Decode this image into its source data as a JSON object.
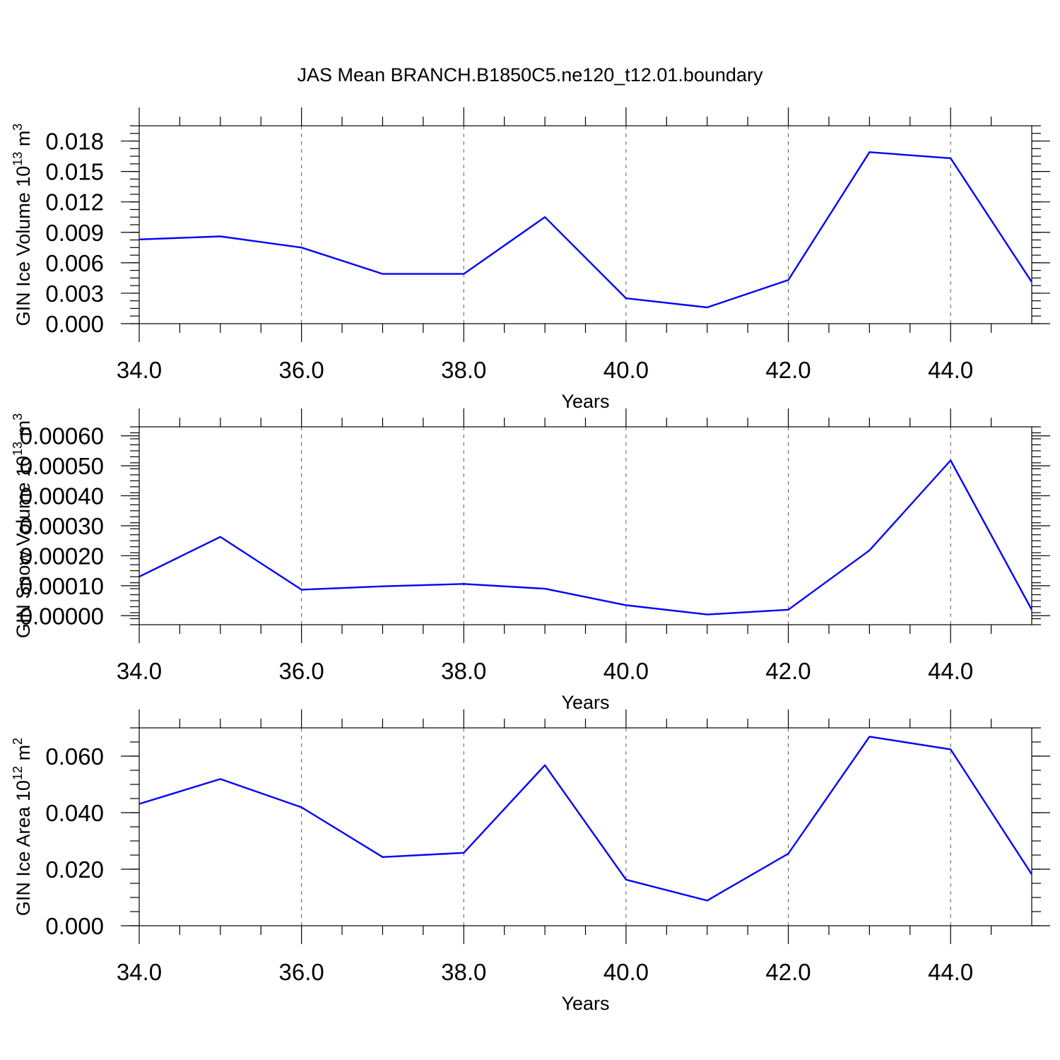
{
  "figure_title": "JAS Mean BRANCH.B1850C5.ne120_t12.01.boundary",
  "colors": {
    "line": "#0000ff",
    "grid": "#555555",
    "axes": "#000000"
  },
  "chart_data": [
    {
      "type": "line",
      "ylabel": "GIN Ice Volume 10",
      "ylabel_exp": "13",
      "ylabel_unit": " m",
      "ylabel_unit_exp": "3",
      "xlabel": "Years",
      "xlim": [
        34,
        45
      ],
      "ylim": [
        0,
        0.0195
      ],
      "xticks": [
        34,
        36,
        38,
        40,
        42,
        44
      ],
      "xtick_labels": [
        "34.0",
        "36.0",
        "38.0",
        "40.0",
        "42.0",
        "44.0"
      ],
      "yticks": [
        0,
        0.003,
        0.006,
        0.009,
        0.012,
        0.015,
        0.018
      ],
      "ytick_labels": [
        "0.000",
        "0.003",
        "0.006",
        "0.009",
        "0.012",
        "0.015",
        "0.018"
      ],
      "grid": "vertical dashed at major x ticks",
      "x": [
        34,
        35,
        36,
        37,
        38,
        39,
        40,
        41,
        42,
        43,
        44,
        45
      ],
      "values": [
        0.0083,
        0.0086,
        0.0075,
        0.0049,
        0.0049,
        0.0105,
        0.0025,
        0.0016,
        0.0043,
        0.0169,
        0.0163,
        0.0041
      ]
    },
    {
      "type": "line",
      "ylabel": "GIN Snow Volume 10",
      "ylabel_exp": "13",
      "ylabel_unit": " m",
      "ylabel_unit_exp": "3",
      "xlabel": "Years",
      "xlim": [
        34,
        45
      ],
      "ylim": [
        -3e-05,
        0.00063
      ],
      "xticks": [
        34,
        36,
        38,
        40,
        42,
        44
      ],
      "xtick_labels": [
        "34.0",
        "36.0",
        "38.0",
        "40.0",
        "42.0",
        "44.0"
      ],
      "yticks": [
        0,
        0.0001,
        0.0002,
        0.0003,
        0.0004,
        0.0005,
        0.0006
      ],
      "ytick_labels": [
        "0.00000",
        "0.00010",
        "0.00020",
        "0.00030",
        "0.00040",
        "0.00050",
        "0.00060"
      ],
      "grid": "vertical dashed at major x ticks",
      "x": [
        34,
        35,
        36,
        37,
        38,
        39,
        40,
        41,
        42,
        43,
        44,
        45
      ],
      "values": [
        0.00013,
        0.000263,
        8.7e-05,
        9.8e-05,
        0.000106,
        9e-05,
        3.5e-05,
        4e-06,
        2e-05,
        0.000218,
        0.000518,
        2e-05
      ]
    },
    {
      "type": "line",
      "ylabel": "GIN Ice Area 10",
      "ylabel_exp": "12",
      "ylabel_unit": " m",
      "ylabel_unit_exp": "2",
      "xlabel": "Years",
      "xlim": [
        34,
        45
      ],
      "ylim": [
        0,
        0.07
      ],
      "xticks": [
        34,
        36,
        38,
        40,
        42,
        44
      ],
      "xtick_labels": [
        "34.0",
        "36.0",
        "38.0",
        "40.0",
        "42.0",
        "44.0"
      ],
      "yticks": [
        0,
        0.02,
        0.04,
        0.06
      ],
      "ytick_labels": [
        "0.000",
        "0.020",
        "0.040",
        "0.060"
      ],
      "grid": "vertical dashed at major x ticks",
      "x": [
        34,
        35,
        36,
        37,
        38,
        39,
        40,
        41,
        42,
        43,
        44,
        45
      ],
      "values": [
        0.0431,
        0.0519,
        0.0419,
        0.0243,
        0.0258,
        0.0568,
        0.0163,
        0.0089,
        0.0255,
        0.0669,
        0.0624,
        0.0182
      ]
    }
  ]
}
